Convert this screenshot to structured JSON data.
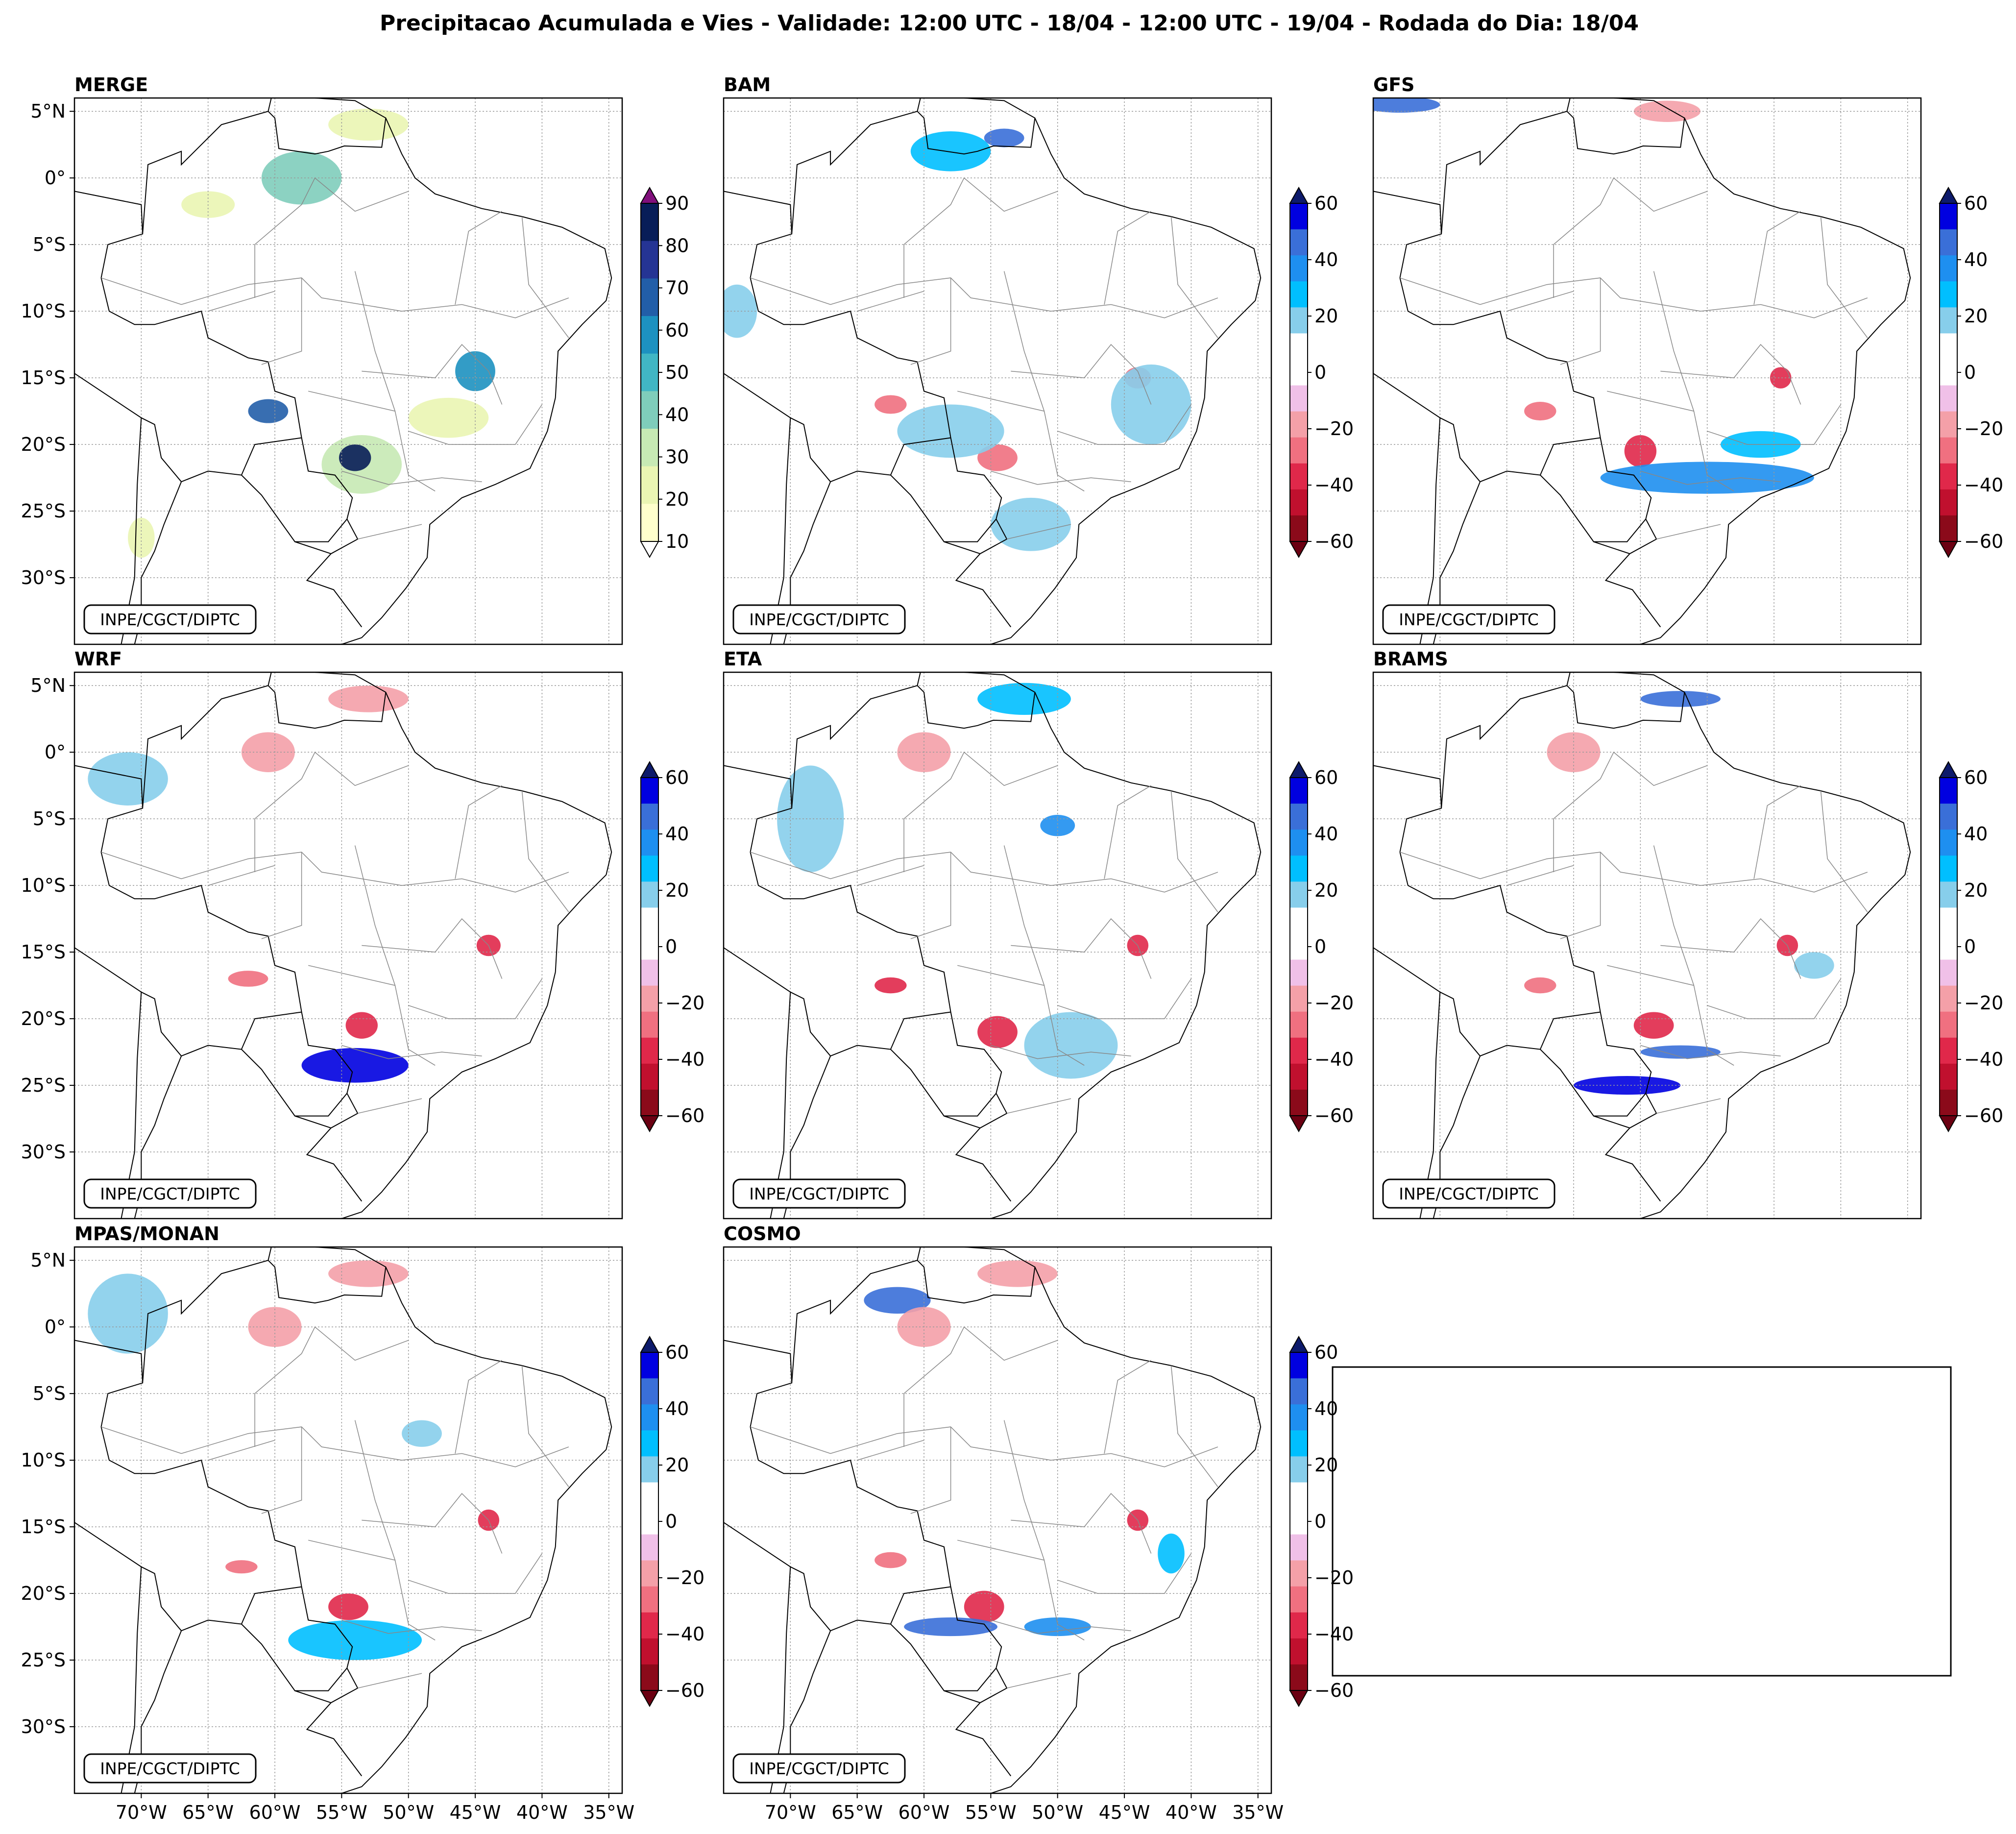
{
  "figure": {
    "title": "Precipitacao Acumulada e Vies - Validade: 12:00 UTC - 18/04 - 12:00 UTC - 19/04 - Rodada do Dia: 18/04"
  },
  "credit": "INPE/CGCT/DIPTC",
  "lat_labels": [
    "5°N",
    "0°",
    "5°S",
    "10°S",
    "15°S",
    "20°S",
    "25°S",
    "30°S"
  ],
  "lon_labels": [
    "70°W",
    "65°W",
    "60°W",
    "55°W",
    "50°W",
    "45°W",
    "40°W",
    "35°W"
  ],
  "map_extent": {
    "lon_min": -75,
    "lon_max": -34,
    "lat_min": -35,
    "lat_max": 6
  },
  "colorbars": {
    "merge": {
      "ticks": [
        "90",
        "80",
        "70",
        "60",
        "50",
        "40",
        "30",
        "20",
        "10"
      ],
      "colors": [
        "#ffffcc",
        "#eaf5b3",
        "#c7e9b4",
        "#7fcdbb",
        "#41b6c4",
        "#1d91c0",
        "#225ea8",
        "#253494",
        "#081d58"
      ],
      "extend_max_color": "#810f7c"
    },
    "bias": {
      "ticks": [
        "60",
        "40",
        "20",
        "0",
        "−20",
        "−40",
        "−60"
      ],
      "colors_top_to_bottom": [
        "#0000e0",
        "#3a6fd8",
        "#1e8ff0",
        "#00bfff",
        "#87ceeb",
        "#ffffff",
        "#ffffff",
        "#f0c0e8",
        "#f4a0a8",
        "#f07080",
        "#e0284a",
        "#c0102e",
        "#8b0a1a"
      ],
      "extend_max_color": "#0d1a6b",
      "extend_min_color": "#6b0012"
    }
  },
  "panels": [
    {
      "id": "merge",
      "label": "MERGE",
      "colorbar": "merge"
    },
    {
      "id": "bam",
      "label": "BAM",
      "colorbar": "bias"
    },
    {
      "id": "gfs",
      "label": "GFS",
      "colorbar": "bias"
    },
    {
      "id": "wrf",
      "label": "WRF",
      "colorbar": "bias"
    },
    {
      "id": "eta",
      "label": "ETA",
      "colorbar": "bias"
    },
    {
      "id": "brams",
      "label": "BRAMS",
      "colorbar": "bias"
    },
    {
      "id": "mpas",
      "label": "MPAS/MONAN",
      "colorbar": "bias"
    },
    {
      "id": "cosmo",
      "label": "COSMO",
      "colorbar": "bias"
    }
  ]
}
